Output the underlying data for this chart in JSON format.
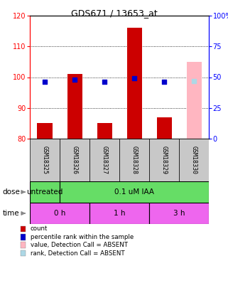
{
  "title": "GDS671 / 13653_at",
  "samples": [
    "GSM18325",
    "GSM18326",
    "GSM18327",
    "GSM18328",
    "GSM18329",
    "GSM18330"
  ],
  "count_values": [
    85.0,
    101.0,
    85.0,
    116.0,
    87.0,
    105.0
  ],
  "count_absent": [
    false,
    false,
    false,
    false,
    false,
    true
  ],
  "percentile_values": [
    46,
    48,
    46,
    49,
    46,
    47
  ],
  "percentile_absent": [
    false,
    false,
    false,
    false,
    false,
    true
  ],
  "ylim_left": [
    80,
    120
  ],
  "ylim_right": [
    0,
    100
  ],
  "yticks_left": [
    80,
    90,
    100,
    110,
    120
  ],
  "yticks_right": [
    0,
    25,
    50,
    75,
    100
  ],
  "ytick_right_labels": [
    "0",
    "25",
    "50",
    "75",
    "100%"
  ],
  "dose_spans": [
    [
      0,
      1,
      "untreated"
    ],
    [
      1,
      6,
      "0.1 uM IAA"
    ]
  ],
  "time_spans": [
    [
      0,
      2,
      "0 h"
    ],
    [
      2,
      4,
      "1 h"
    ],
    [
      4,
      6,
      "3 h"
    ]
  ],
  "bar_color_present": "#cc0000",
  "bar_color_absent": "#ffb6c1",
  "dot_color_present": "#0000cc",
  "dot_color_absent": "#add8e6",
  "bar_width": 0.5,
  "dot_size": 25,
  "green_color": "#66dd66",
  "pink_color": "#ee66ee",
  "gray_color": "#c8c8c8",
  "legend_entries": [
    [
      "#cc0000",
      "count"
    ],
    [
      "#0000cc",
      "percentile rank within the sample"
    ],
    [
      "#ffb6c1",
      "value, Detection Call = ABSENT"
    ],
    [
      "#add8e6",
      "rank, Detection Call = ABSENT"
    ]
  ]
}
